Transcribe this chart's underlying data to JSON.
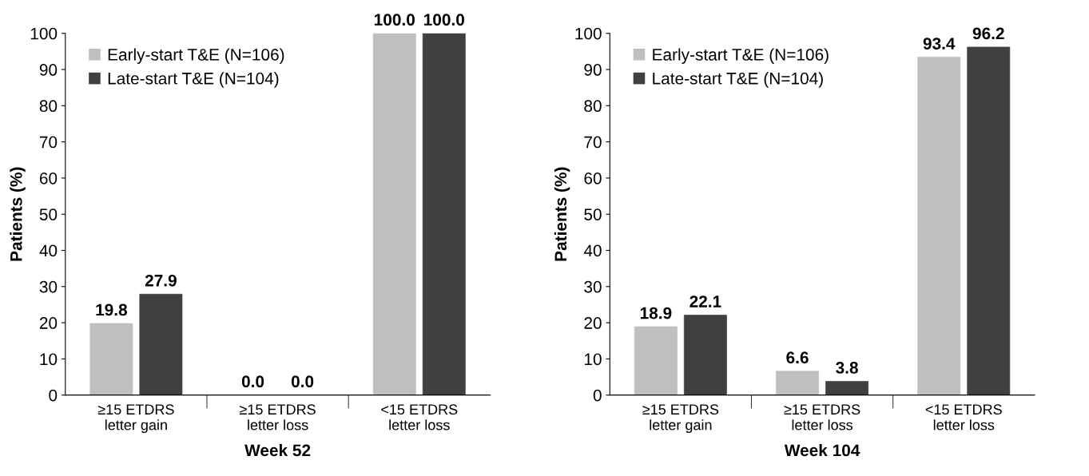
{
  "chart_data": [
    {
      "type": "bar",
      "xlabel": "Week 52",
      "ylabel": "Patients (%)",
      "categories": [
        "≥15 ETDRS\nletter gain",
        "≥15 ETDRS\nletter loss",
        "<15 ETDRS\nletter loss"
      ],
      "ylim": [
        0,
        100
      ],
      "yticks": [
        0,
        10,
        20,
        30,
        40,
        50,
        60,
        70,
        80,
        90,
        100
      ],
      "legend": "top left",
      "series": [
        {
          "name": "Early-start T&E (N=106)",
          "color": "#bfbfbf",
          "values": [
            19.8,
            0.0,
            100.0
          ],
          "value_labels": [
            "19.8",
            "0.0",
            "100.0"
          ]
        },
        {
          "name": "Late-start T&E (N=104)",
          "color": "#404040",
          "values": [
            27.9,
            0.0,
            100.0
          ],
          "value_labels": [
            "27.9",
            "0.0",
            "100.0"
          ]
        }
      ]
    },
    {
      "type": "bar",
      "xlabel": "Week 104",
      "ylabel": "Patients (%)",
      "categories": [
        "≥15 ETDRS\nletter gain",
        "≥15 ETDRS\nletter loss",
        "<15 ETDRS\nletter loss"
      ],
      "ylim": [
        0,
        100
      ],
      "yticks": [
        0,
        10,
        20,
        30,
        40,
        50,
        60,
        70,
        80,
        90,
        100
      ],
      "legend": "top left",
      "series": [
        {
          "name": "Early-start T&E (N=106)",
          "color": "#bfbfbf",
          "values": [
            18.9,
            6.6,
            93.4
          ],
          "value_labels": [
            "18.9",
            "6.6",
            "93.4"
          ]
        },
        {
          "name": "Late-start T&E (N=104)",
          "color": "#404040",
          "values": [
            22.1,
            3.8,
            96.2
          ],
          "value_labels": [
            "22.1",
            "3.8",
            "96.2"
          ]
        }
      ]
    }
  ]
}
